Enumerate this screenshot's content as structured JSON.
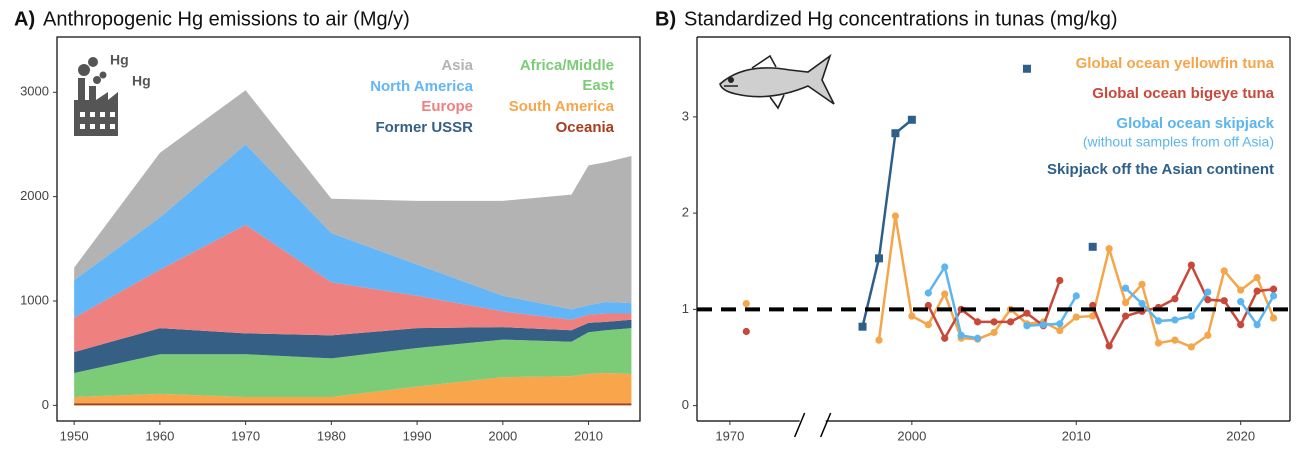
{
  "chart_data": [
    {
      "type": "stacked_area",
      "panel_label": "A)",
      "title": "Anthropogenic Hg emissions to air (Mg/y)",
      "annotations": [
        "Hg",
        "Hg"
      ],
      "x": [
        1950,
        1960,
        1970,
        1980,
        1990,
        2000,
        2008,
        2010,
        2012,
        2015
      ],
      "series": [
        {
          "name": "Oceania",
          "color": "#a83c1e",
          "values": [
            20,
            20,
            20,
            20,
            20,
            20,
            20,
            20,
            20,
            20
          ]
        },
        {
          "name": "South America",
          "color": "#f9a54b",
          "values": [
            60,
            90,
            60,
            60,
            160,
            250,
            260,
            280,
            290,
            280
          ]
        },
        {
          "name": "Africa/Middle East",
          "color": "#7ccc77",
          "values": [
            230,
            380,
            410,
            370,
            370,
            360,
            330,
            400,
            410,
            440
          ]
        },
        {
          "name": "Former USSR",
          "color": "#355f85",
          "values": [
            200,
            250,
            200,
            220,
            190,
            120,
            110,
            90,
            80,
            80
          ]
        },
        {
          "name": "Europe",
          "color": "#ef8080",
          "values": [
            330,
            560,
            1040,
            510,
            310,
            150,
            100,
            80,
            80,
            60
          ]
        },
        {
          "name": "North America",
          "color": "#62b6f7",
          "values": [
            360,
            500,
            770,
            470,
            300,
            150,
            100,
            90,
            110,
            100
          ]
        },
        {
          "name": "Asia",
          "color": "#b3b3b3",
          "values": [
            120,
            620,
            520,
            330,
            610,
            910,
            1100,
            1340,
            1340,
            1410
          ]
        }
      ],
      "xlim": [
        1948,
        2016
      ],
      "ylim": [
        -150,
        3530
      ],
      "xticks": [
        1950,
        1960,
        1970,
        1980,
        1990,
        2000,
        2010
      ],
      "yticks": [
        0,
        1000,
        2000,
        3000
      ],
      "grid": false
    },
    {
      "type": "line",
      "panel_label": "B)",
      "title": "Standardized Hg concentrations in tunas (mg/kg)",
      "annotations": [
        "(without samples from off Asia)"
      ],
      "x": [
        1971,
        1997,
        1998,
        1999,
        2000,
        2001,
        2002,
        2003,
        2004,
        2005,
        2006,
        2007,
        2008,
        2009,
        2010,
        2011,
        2012,
        2013,
        2014,
        2015,
        2016,
        2017,
        2018,
        2019,
        2020,
        2021,
        2022
      ],
      "x_break": [
        1974,
        1995
      ],
      "series": [
        {
          "name": "Global ocean yellowfin tuna",
          "color": "#f5a54a",
          "marker": "circle",
          "values": [
            1.06,
            null,
            0.68,
            1.97,
            0.93,
            0.84,
            1.16,
            0.7,
            0.69,
            0.76,
            1.0,
            0.85,
            0.87,
            0.78,
            0.92,
            0.93,
            1.63,
            1.07,
            1.26,
            0.65,
            0.68,
            0.61,
            0.73,
            1.4,
            1.2,
            1.33,
            0.91
          ]
        },
        {
          "name": "Global ocean bigeye tuna",
          "color": "#c8483a",
          "marker": "circle",
          "values": [
            0.77,
            null,
            null,
            null,
            null,
            1.04,
            0.7,
            1.0,
            0.87,
            0.87,
            0.87,
            0.96,
            0.83,
            1.3,
            null,
            1.04,
            0.62,
            0.93,
            0.98,
            1.02,
            1.11,
            1.46,
            1.1,
            1.09,
            0.84,
            1.19,
            1.21
          ]
        },
        {
          "name": "Global ocean skipjack",
          "color": "#5bb5ef",
          "marker": "circle",
          "values": [
            null,
            null,
            null,
            null,
            null,
            1.17,
            1.44,
            0.73,
            0.7,
            null,
            null,
            0.83,
            0.84,
            0.85,
            1.14,
            null,
            null,
            1.22,
            1.06,
            0.88,
            0.89,
            0.93,
            1.18,
            null,
            1.08,
            0.84,
            1.14
          ]
        },
        {
          "name": "Skipjack off the Asian continent",
          "color": "#2d5f8a",
          "marker": "square",
          "values": [
            null,
            0.82,
            1.53,
            2.83,
            2.97,
            null,
            null,
            null,
            null,
            null,
            null,
            3.5,
            null,
            null,
            null,
            1.65,
            null,
            null,
            null,
            null,
            null,
            null,
            null,
            null,
            null,
            null,
            null
          ]
        }
      ],
      "hline": 1,
      "xlim": [
        1968,
        2023
      ],
      "ylim": [
        -0.16,
        3.83
      ],
      "xticks": [
        1970,
        2000,
        2010,
        2020
      ],
      "yticks": [
        0,
        1,
        2,
        3
      ]
    }
  ]
}
